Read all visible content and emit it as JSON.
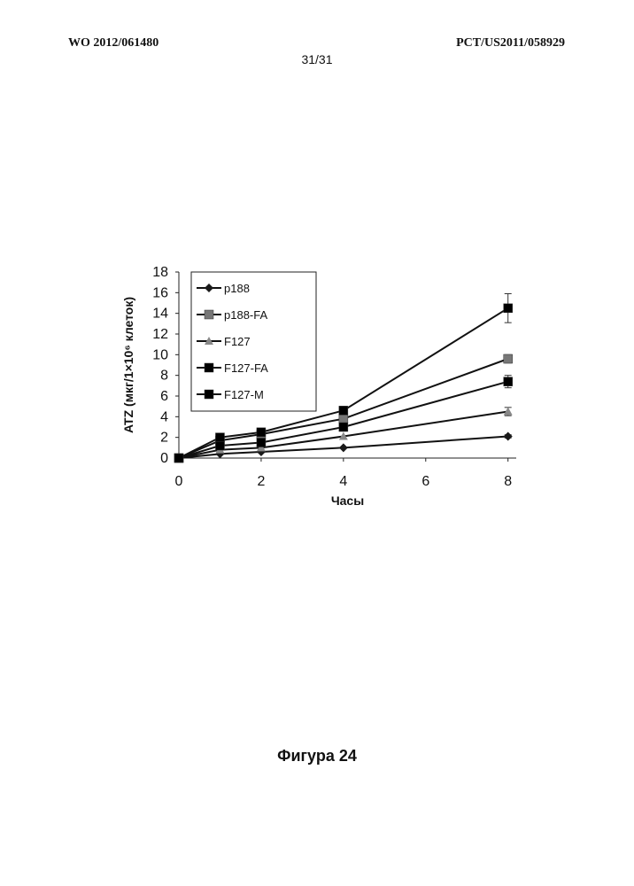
{
  "header": {
    "left": "WO 2012/061480",
    "right": "PCT/US2011/058929",
    "page": "31/31"
  },
  "caption": "Фигура 24",
  "chart_data": {
    "type": "line",
    "xlabel": "Часы",
    "ylabel": "ATZ (мкг/1×10⁶ клеток)",
    "x": [
      0,
      1,
      2,
      4,
      8
    ],
    "xticks": [
      0,
      2,
      4,
      6,
      8
    ],
    "yticks": [
      0,
      2,
      4,
      6,
      8,
      10,
      12,
      14,
      16,
      18
    ],
    "xlim": [
      0,
      8.2
    ],
    "ylim": [
      0,
      18
    ],
    "grid": false,
    "legend_position": "top-left",
    "series": [
      {
        "name": "p188",
        "marker": "diamond",
        "color": "#1a1a1a",
        "values": [
          0,
          0.4,
          0.6,
          1.0,
          2.1
        ],
        "error_8h": 0.15
      },
      {
        "name": "p188-FA",
        "marker": "square",
        "color": "#777777",
        "values": [
          0,
          1.7,
          2.3,
          3.8,
          9.6
        ],
        "error_8h": 0.4
      },
      {
        "name": "F127",
        "marker": "triangle",
        "color": "#888888",
        "values": [
          0,
          0.8,
          1.0,
          2.1,
          4.5
        ],
        "error_8h": 0.4
      },
      {
        "name": "F127-FA",
        "marker": "square",
        "color": "#000000",
        "values": [
          0,
          1.2,
          1.5,
          3.0,
          7.4
        ],
        "error_8h": 0.6
      },
      {
        "name": "F127-M",
        "marker": "square",
        "color": "#000000",
        "values": [
          0,
          2.0,
          2.5,
          4.6,
          14.5
        ],
        "error_8h": 1.4
      }
    ]
  }
}
